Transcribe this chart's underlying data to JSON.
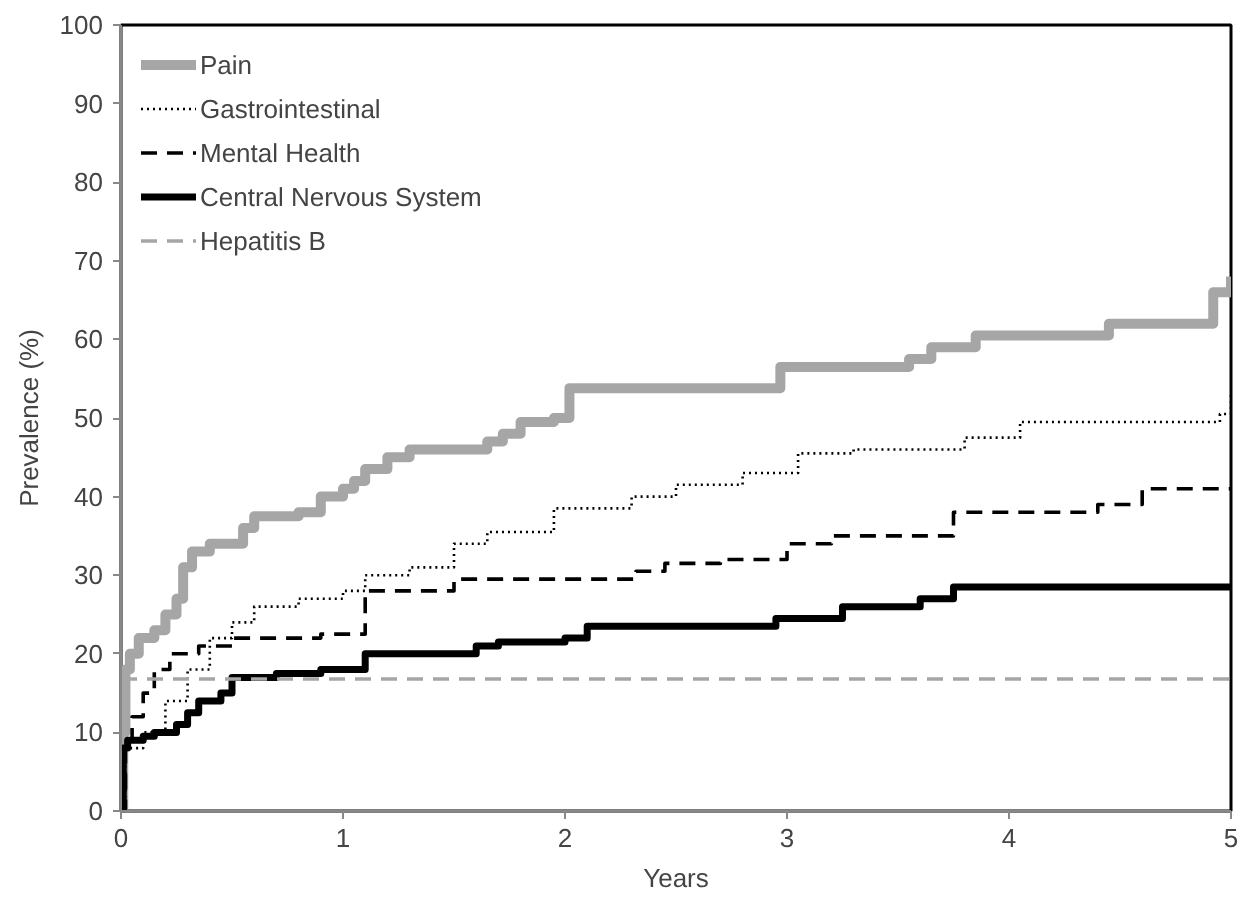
{
  "chart_data": {
    "type": "step",
    "xlabel": "Years",
    "ylabel": "Prevalence (%)",
    "xlim": [
      0,
      5
    ],
    "ylim": [
      0,
      100
    ],
    "xticks": [
      0,
      1,
      2,
      3,
      4,
      5
    ],
    "yticks": [
      0,
      10,
      20,
      30,
      40,
      50,
      60,
      70,
      80,
      90,
      100
    ],
    "grid": false,
    "legend": "top left",
    "marker": "none",
    "series": [
      {
        "name": "Pain",
        "color": "#a6a6a6",
        "line_style": "solid",
        "x": [
          0,
          0.01,
          0.02,
          0.04,
          0.08,
          0.15,
          0.2,
          0.25,
          0.28,
          0.32,
          0.4,
          0.55,
          0.6,
          0.8,
          0.9,
          1.0,
          1.05,
          1.1,
          1.2,
          1.3,
          1.65,
          1.72,
          1.8,
          1.95,
          2.02,
          2.97,
          3.55,
          3.65,
          3.85,
          4.45,
          4.92,
          5
        ],
        "values": [
          0,
          10,
          18,
          20,
          22,
          23,
          25,
          27,
          31,
          33,
          34,
          36,
          37.5,
          38,
          40,
          41,
          42,
          43.5,
          45,
          46,
          47,
          48,
          49.5,
          50,
          53.8,
          56.5,
          57.5,
          59,
          60.5,
          62,
          66,
          68
        ]
      },
      {
        "name": "Gastrointestinal",
        "color": "#000000",
        "line_style": "dotted",
        "x": [
          0,
          0.02,
          0.1,
          0.2,
          0.3,
          0.4,
          0.5,
          0.6,
          0.8,
          1.0,
          1.1,
          1.3,
          1.5,
          1.65,
          1.95,
          2.3,
          2.5,
          2.8,
          3.05,
          3.3,
          3.8,
          4.05,
          4.95,
          5
        ],
        "values": [
          0,
          8,
          10,
          14,
          18,
          22,
          24,
          26,
          27,
          28,
          30,
          31,
          34,
          35.5,
          38.5,
          40,
          41.5,
          43,
          45.5,
          46,
          47.5,
          49.5,
          50.5,
          53
        ]
      },
      {
        "name": "Mental Health",
        "color": "#000000",
        "line_style": "dashed",
        "x": [
          0,
          0.02,
          0.05,
          0.1,
          0.15,
          0.22,
          0.35,
          0.5,
          0.9,
          1.1,
          1.5,
          2.32,
          2.45,
          2.7,
          3.0,
          3.2,
          3.75,
          4.4,
          4.6,
          5
        ],
        "values": [
          0,
          9,
          12,
          15,
          18,
          20,
          21,
          22,
          22.5,
          28,
          29.5,
          30.5,
          31.5,
          32,
          34,
          35,
          38,
          39,
          41,
          41
        ]
      },
      {
        "name": "Central Nervous System",
        "color": "#000000",
        "line_style": "solid",
        "x": [
          0,
          0.01,
          0.03,
          0.1,
          0.15,
          0.25,
          0.3,
          0.35,
          0.45,
          0.5,
          0.7,
          0.9,
          1.1,
          1.6,
          1.7,
          2.0,
          2.1,
          2.95,
          3.25,
          3.6,
          3.75,
          5
        ],
        "values": [
          0,
          8,
          9,
          9.5,
          10,
          11,
          12.5,
          14,
          15,
          17,
          17.5,
          18,
          20,
          21,
          21.5,
          22,
          23.5,
          24.5,
          26,
          27,
          28.5,
          28.5
        ]
      },
      {
        "name": "Hepatitis B",
        "color": "#a6a6a6",
        "line_style": "dashed",
        "type": "line",
        "x": [
          0,
          5
        ],
        "values": [
          16.8,
          16.8
        ]
      }
    ]
  }
}
